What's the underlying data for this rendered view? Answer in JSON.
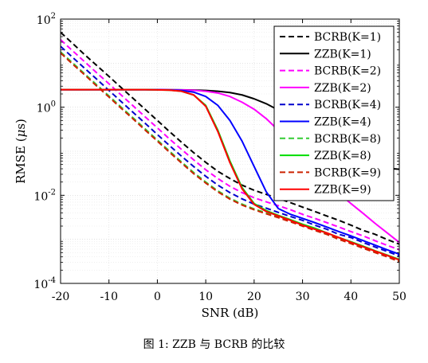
{
  "chart_data": {
    "type": "line",
    "xlabel": "SNR (dB)",
    "ylabel": "RMSE (μs)",
    "ylabel_prefix": "RMSE (",
    "ylabel_mu": "μ",
    "ylabel_suffix": "s)",
    "caption": "图 1: ZZB 与 BCRB 的比较",
    "xlim": [
      -20,
      50
    ],
    "ylim": [
      0.0001,
      100
    ],
    "yscale": "log",
    "grid": true,
    "legend_position": "top-right",
    "x_ticks": [
      "-20",
      "-10",
      "0",
      "10",
      "20",
      "30",
      "40",
      "50"
    ],
    "y_ticks": [
      {
        "base": "10",
        "exp": "-4"
      },
      {
        "base": "10",
        "exp": "-2"
      },
      {
        "base": "10",
        "exp": "0"
      },
      {
        "base": "10",
        "exp": "2"
      }
    ],
    "x": [
      -20,
      -17.5,
      -15,
      -12.5,
      -10,
      -7.5,
      -5,
      -2.5,
      0,
      2.5,
      5,
      7.5,
      10,
      12.5,
      15,
      17.5,
      20,
      22.5,
      25,
      27.5,
      30,
      32.5,
      35,
      37.5,
      40,
      42.5,
      45,
      47.5,
      50
    ],
    "series": [
      {
        "name": "BCRB(K=1)",
        "color": "#000000",
        "dash": "dashed",
        "values": [
          50,
          28,
          15.5,
          8.8,
          5,
          2.8,
          1.58,
          0.89,
          0.5,
          0.28,
          0.16,
          0.093,
          0.056,
          0.035,
          0.024,
          0.017,
          0.013,
          0.0105,
          0.0085,
          0.0068,
          0.0054,
          0.0043,
          0.0034,
          0.0027,
          0.0021,
          0.0016,
          0.0013,
          0.00099,
          0.00078
        ]
      },
      {
        "name": "ZZB(K=1)",
        "color": "#000000",
        "dash": "solid",
        "values": [
          2.5,
          2.5,
          2.5,
          2.5,
          2.5,
          2.5,
          2.5,
          2.5,
          2.5,
          2.49,
          2.48,
          2.45,
          2.4,
          2.3,
          2.15,
          1.9,
          1.55,
          1.2,
          0.86,
          0.58,
          0.37,
          0.23,
          0.14,
          0.09,
          0.065,
          0.05,
          0.045,
          0.041,
          0.039
        ]
      },
      {
        "name": "BCRB(K=2)",
        "color": "#ff00ff",
        "dash": "dashed",
        "values": [
          34,
          19,
          10.7,
          6,
          3.4,
          1.9,
          1.07,
          0.6,
          0.34,
          0.19,
          0.11,
          0.064,
          0.038,
          0.024,
          0.016,
          0.0115,
          0.0088,
          0.0071,
          0.0058,
          0.0047,
          0.0037,
          0.003,
          0.0024,
          0.0019,
          0.0015,
          0.0012,
          0.00093,
          0.00073,
          0.00058
        ]
      },
      {
        "name": "ZZB(K=2)",
        "color": "#ff00ff",
        "dash": "solid",
        "values": [
          2.5,
          2.5,
          2.5,
          2.5,
          2.5,
          2.5,
          2.5,
          2.5,
          2.5,
          2.49,
          2.47,
          2.42,
          2.3,
          2.1,
          1.75,
          1.3,
          0.9,
          0.55,
          0.3,
          0.15,
          0.072,
          0.036,
          0.019,
          0.011,
          0.0065,
          0.0039,
          0.0023,
          0.0014,
          0.00085
        ]
      },
      {
        "name": "BCRB(K=4)",
        "color": "#0000cc",
        "dash": "dashed",
        "values": [
          24,
          13.5,
          7.6,
          4.3,
          2.4,
          1.35,
          0.76,
          0.43,
          0.24,
          0.135,
          0.077,
          0.045,
          0.027,
          0.017,
          0.0115,
          0.0083,
          0.0063,
          0.0051,
          0.0041,
          0.0033,
          0.0027,
          0.0021,
          0.0017,
          0.0013,
          0.0011,
          0.00085,
          0.00067,
          0.00053,
          0.00042
        ]
      },
      {
        "name": "ZZB(K=4)",
        "color": "#0000ff",
        "dash": "solid",
        "values": [
          2.5,
          2.5,
          2.5,
          2.5,
          2.5,
          2.5,
          2.5,
          2.5,
          2.49,
          2.47,
          2.4,
          2.2,
          1.75,
          1.1,
          0.5,
          0.17,
          0.045,
          0.012,
          0.005,
          0.0037,
          0.003,
          0.0024,
          0.0019,
          0.0015,
          0.0012,
          0.00094,
          0.00074,
          0.00058,
          0.00046
        ]
      },
      {
        "name": "BCRB(K=8)",
        "color": "#33cc33",
        "dash": "dashed",
        "values": [
          18,
          10.1,
          5.7,
          3.2,
          1.8,
          1.01,
          0.57,
          0.32,
          0.18,
          0.101,
          0.057,
          0.033,
          0.02,
          0.0126,
          0.0086,
          0.0063,
          0.0049,
          0.004,
          0.0033,
          0.0026,
          0.0021,
          0.0017,
          0.0013,
          0.00106,
          0.00084,
          0.00066,
          0.00052,
          0.00041,
          0.00033
        ]
      },
      {
        "name": "ZZB(K=8)",
        "color": "#00dd00",
        "dash": "solid",
        "values": [
          2.5,
          2.5,
          2.5,
          2.5,
          2.5,
          2.5,
          2.5,
          2.5,
          2.48,
          2.44,
          2.3,
          1.9,
          1.1,
          0.3,
          0.06,
          0.015,
          0.0065,
          0.0045,
          0.0035,
          0.0028,
          0.0022,
          0.0018,
          0.0014,
          0.0011,
          0.00088,
          0.0007,
          0.00055,
          0.00044,
          0.00035
        ]
      },
      {
        "name": "BCRB(K=9)",
        "color": "#cc2200",
        "dash": "dashed",
        "values": [
          17,
          9.5,
          5.4,
          3,
          1.7,
          0.95,
          0.54,
          0.3,
          0.17,
          0.095,
          0.054,
          0.031,
          0.019,
          0.012,
          0.0082,
          0.006,
          0.0047,
          0.0038,
          0.0031,
          0.0025,
          0.002,
          0.0016,
          0.0013,
          0.001,
          0.0008,
          0.00063,
          0.0005,
          0.0004,
          0.00031
        ]
      },
      {
        "name": "ZZB(K=9)",
        "color": "#ff0000",
        "dash": "solid",
        "values": [
          2.5,
          2.5,
          2.5,
          2.5,
          2.5,
          2.5,
          2.5,
          2.5,
          2.48,
          2.44,
          2.3,
          1.9,
          1.05,
          0.28,
          0.055,
          0.014,
          0.0062,
          0.0043,
          0.0034,
          0.0027,
          0.0021,
          0.0017,
          0.0014,
          0.0011,
          0.00086,
          0.00068,
          0.00054,
          0.00043,
          0.00034
        ]
      }
    ]
  }
}
